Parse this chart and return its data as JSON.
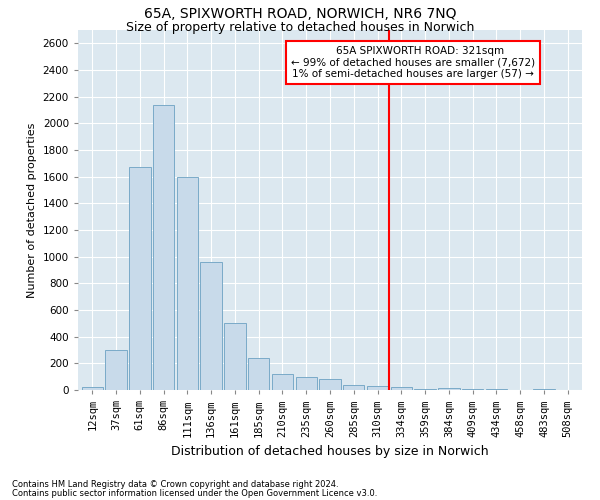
{
  "title": "65A, SPIXWORTH ROAD, NORWICH, NR6 7NQ",
  "subtitle": "Size of property relative to detached houses in Norwich",
  "xlabel": "Distribution of detached houses by size in Norwich",
  "ylabel": "Number of detached properties",
  "footer1": "Contains HM Land Registry data © Crown copyright and database right 2024.",
  "footer2": "Contains public sector information licensed under the Open Government Licence v3.0.",
  "bar_labels": [
    "12sqm",
    "37sqm",
    "61sqm",
    "86sqm",
    "111sqm",
    "136sqm",
    "161sqm",
    "185sqm",
    "210sqm",
    "235sqm",
    "260sqm",
    "285sqm",
    "310sqm",
    "334sqm",
    "359sqm",
    "384sqm",
    "409sqm",
    "434sqm",
    "458sqm",
    "483sqm",
    "508sqm"
  ],
  "bar_values": [
    20,
    300,
    1670,
    2140,
    1600,
    960,
    500,
    240,
    120,
    100,
    80,
    40,
    30,
    20,
    10,
    15,
    8,
    5,
    3,
    8,
    3
  ],
  "bar_color": "#c8daea",
  "bar_edge_color": "#7aaac8",
  "vline_pos": 12.5,
  "vline_color": "red",
  "annotation_line1": "    65A SPIXWORTH ROAD: 321sqm",
  "annotation_line2": "← 99% of detached houses are smaller (7,672)",
  "annotation_line3": "1% of semi-detached houses are larger (57) →",
  "ylim": [
    0,
    2700
  ],
  "yticks": [
    0,
    200,
    400,
    600,
    800,
    1000,
    1200,
    1400,
    1600,
    1800,
    2000,
    2200,
    2400,
    2600
  ],
  "plot_bg_color": "#dce8f0",
  "title_fontsize": 10,
  "subtitle_fontsize": 9,
  "ylabel_fontsize": 8,
  "xlabel_fontsize": 9,
  "tick_fontsize": 7.5,
  "footer_fontsize": 6,
  "annot_fontsize": 7.5
}
